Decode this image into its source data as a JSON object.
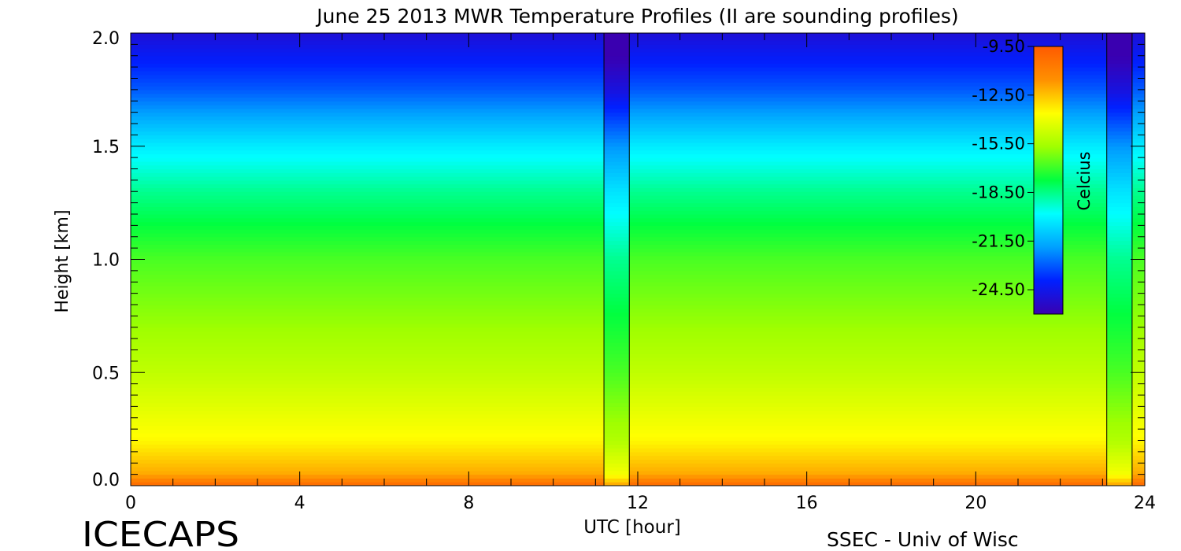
{
  "footer": {
    "left_label": "ICECAPS",
    "right_label": "SSEC - Univ of Wisc"
  },
  "chart_data": {
    "type": "heatmap",
    "title": "June 25 2013 MWR Temperature Profiles (II are sounding profiles)",
    "xlabel": "UTC [hour]",
    "ylabel": "Height [km]",
    "xlim": [
      0,
      24
    ],
    "ylim": [
      0,
      2
    ],
    "x_ticks": [
      0,
      4,
      8,
      12,
      16,
      20,
      24
    ],
    "y_ticks": [
      0.0,
      0.5,
      1.0,
      1.5,
      2.0
    ],
    "x_tick_labels": [
      "0",
      "4",
      "8",
      "12",
      "16",
      "20",
      "24"
    ],
    "y_tick_labels": [
      "0.0",
      "0.5",
      "1.0",
      "1.5",
      "2.0"
    ],
    "colorbar": {
      "label": "Celcius",
      "range": [
        -26,
        -9.5
      ],
      "ticks": [
        -9.5,
        -12.5,
        -15.5,
        -18.5,
        -21.5,
        -24.5
      ],
      "tick_labels": [
        "-9.50",
        "-12.50",
        "-15.50",
        "-18.50",
        "-21.50",
        "-24.50"
      ],
      "colors": [
        "#3a00b0",
        "#0020ff",
        "#00a0ff",
        "#00ffff",
        "#00ff40",
        "#a0ff00",
        "#ffff00",
        "#ff9000",
        "#ff5a00"
      ]
    },
    "sounding_profiles_utc": [
      11.2,
      23.1
    ],
    "temperature_profile": {
      "heights_km": [
        0.0,
        0.05,
        0.2,
        0.5,
        1.0,
        1.3,
        1.5,
        1.75,
        2.0
      ],
      "celsius": [
        -10.0,
        -12.0,
        -13.5,
        -15.0,
        -16.8,
        -18.6,
        -20.2,
        -23.0,
        -25.0
      ]
    }
  }
}
